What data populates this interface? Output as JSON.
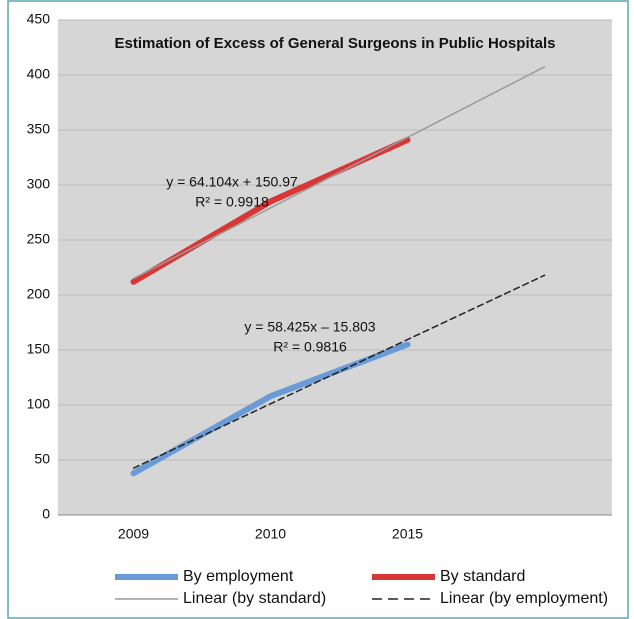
{
  "chart_data": {
    "type": "line",
    "title": "Estimation of Excess of General Surgeons in Public Hospitals",
    "categories": [
      "2009",
      "2010",
      "2015",
      null
    ],
    "series": [
      {
        "name": "By employment",
        "color": "#6b9bd6",
        "linewidth": 6,
        "dashed": false,
        "values": [
          38,
          108,
          155,
          null
        ]
      },
      {
        "name": "By standard",
        "color": "#d93636",
        "linewidth": 6,
        "dashed": false,
        "values": [
          212,
          285,
          341,
          null
        ]
      },
      {
        "name": "Linear (by standard)",
        "color": "#9a9a9a",
        "linewidth": 1.5,
        "dashed": false,
        "values": [
          215.07,
          279.18,
          343.28,
          407.39
        ]
      },
      {
        "name": "Linear (by employment)",
        "color": "#222222",
        "linewidth": 1.5,
        "dashed": true,
        "values": [
          42.62,
          101.05,
          159.47,
          217.9
        ]
      }
    ],
    "annotations": [
      "y = 64.104x + 150.97",
      "R² = 0.9918",
      "y = 58.425x – 15.803",
      "R² = 0.9816"
    ],
    "ylim": [
      0,
      450
    ],
    "yticks": [
      0,
      50,
      100,
      150,
      200,
      250,
      300,
      350,
      400,
      450
    ],
    "grid": true
  }
}
